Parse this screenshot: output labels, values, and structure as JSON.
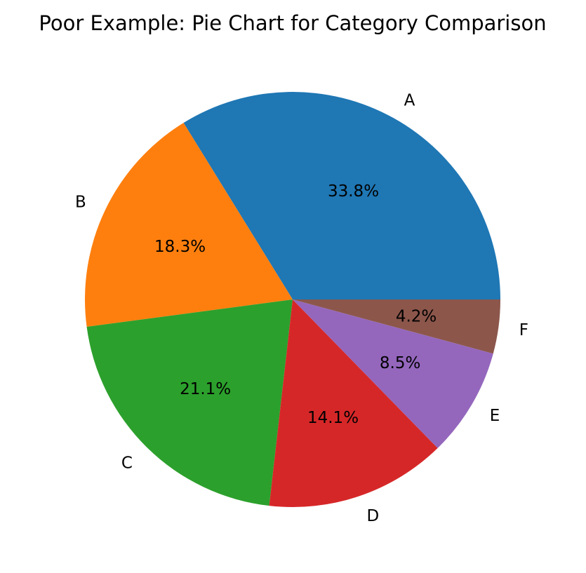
{
  "chart_data": {
    "type": "pie",
    "title": "Poor Example: Pie Chart for Category Comparison",
    "categories": [
      "A",
      "B",
      "C",
      "D",
      "E",
      "F"
    ],
    "values": [
      33.8,
      18.3,
      21.1,
      14.1,
      8.5,
      4.2
    ],
    "percent_labels": [
      "33.8%",
      "18.3%",
      "21.1%",
      "14.1%",
      "8.5%",
      "4.2%"
    ],
    "colors": [
      "#1f77b4",
      "#ff7f0e",
      "#2ca02c",
      "#d62728",
      "#9467bd",
      "#8c564b"
    ],
    "start_angle_deg": 0,
    "direction": "counterclockwise",
    "legend": "none"
  }
}
